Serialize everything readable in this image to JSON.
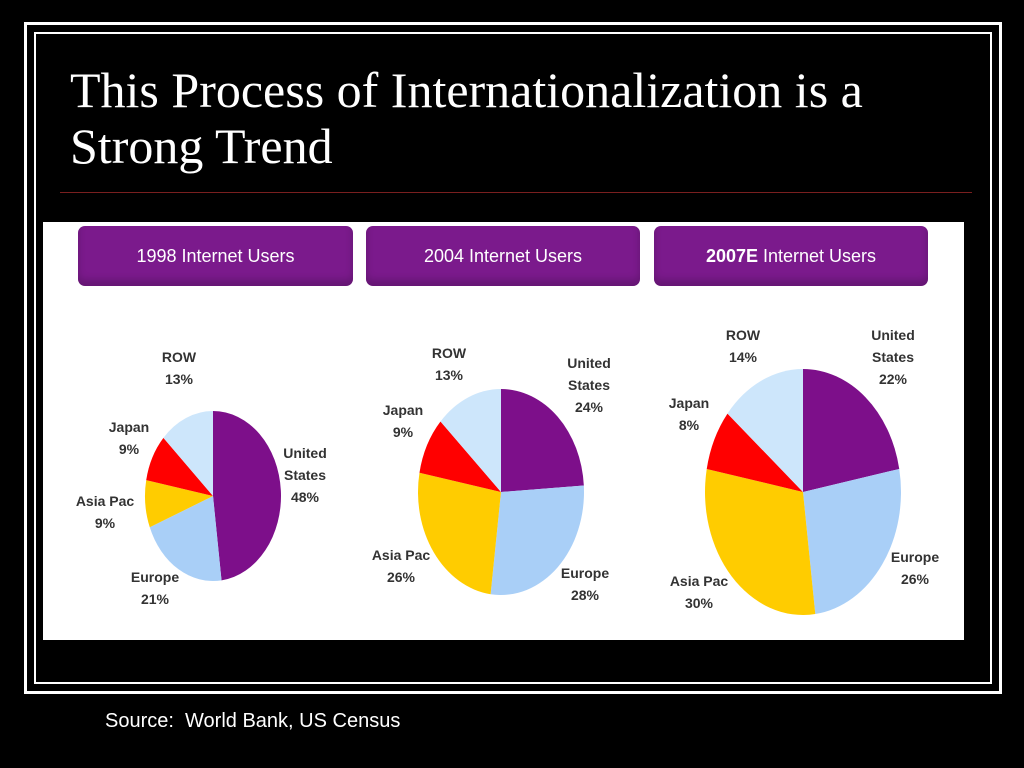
{
  "slide": {
    "title": "This Process of Internationalization is a Strong Trend",
    "source": "Source:  World Bank, US Census"
  },
  "colors": {
    "United States": "#7d0f8a",
    "Europe": "#a9cff7",
    "Asia Pac": "#ffcc00",
    "Japan": "#ff0000",
    "ROW": "#cde6fb",
    "header_bg": "#7b1a8c"
  },
  "chart_data": [
    {
      "type": "pie",
      "title": "1998 Internet Users",
      "title_bold_part": "",
      "categories": [
        "United States",
        "Europe",
        "Asia Pac",
        "Japan",
        "ROW"
      ],
      "labels": [
        [
          "United",
          "States",
          "48%"
        ],
        [
          "Europe",
          "21%"
        ],
        [
          "Asia Pac",
          "9%"
        ],
        [
          "Japan",
          "9%"
        ],
        [
          "ROW",
          "13%"
        ]
      ],
      "values": [
        48,
        21,
        9,
        9,
        13
      ]
    },
    {
      "type": "pie",
      "title": "2004 Internet Users",
      "title_bold_part": "",
      "categories": [
        "United States",
        "Europe",
        "Asia Pac",
        "Japan",
        "ROW"
      ],
      "labels": [
        [
          "United",
          "States",
          "24%"
        ],
        [
          "Europe",
          "28%"
        ],
        [
          "Asia Pac",
          "26%"
        ],
        [
          "Japan",
          "9%"
        ],
        [
          "ROW",
          "13%"
        ]
      ],
      "values": [
        24,
        28,
        26,
        9,
        13
      ]
    },
    {
      "type": "pie",
      "title": " Internet Users",
      "title_bold_part": "2007E",
      "categories": [
        "United States",
        "Europe",
        "Asia Pac",
        "Japan",
        "ROW"
      ],
      "labels": [
        [
          "United",
          "States",
          "22%"
        ],
        [
          "Europe",
          "26%"
        ],
        [
          "Asia Pac",
          "30%"
        ],
        [
          "Japan",
          "8%"
        ],
        [
          "ROW",
          "14%"
        ]
      ],
      "values": [
        22,
        26,
        30,
        8,
        14
      ]
    }
  ]
}
